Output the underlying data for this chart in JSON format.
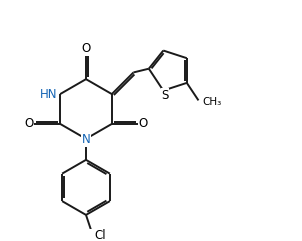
{
  "background_color": "#ffffff",
  "line_color": "#1a1a1a",
  "label_color_N": "#1464b4",
  "line_width": 1.4,
  "figsize": [
    3.02,
    2.41
  ],
  "dpi": 100,
  "xlim": [
    0,
    7.5
  ],
  "ylim": [
    0,
    6.0
  ]
}
